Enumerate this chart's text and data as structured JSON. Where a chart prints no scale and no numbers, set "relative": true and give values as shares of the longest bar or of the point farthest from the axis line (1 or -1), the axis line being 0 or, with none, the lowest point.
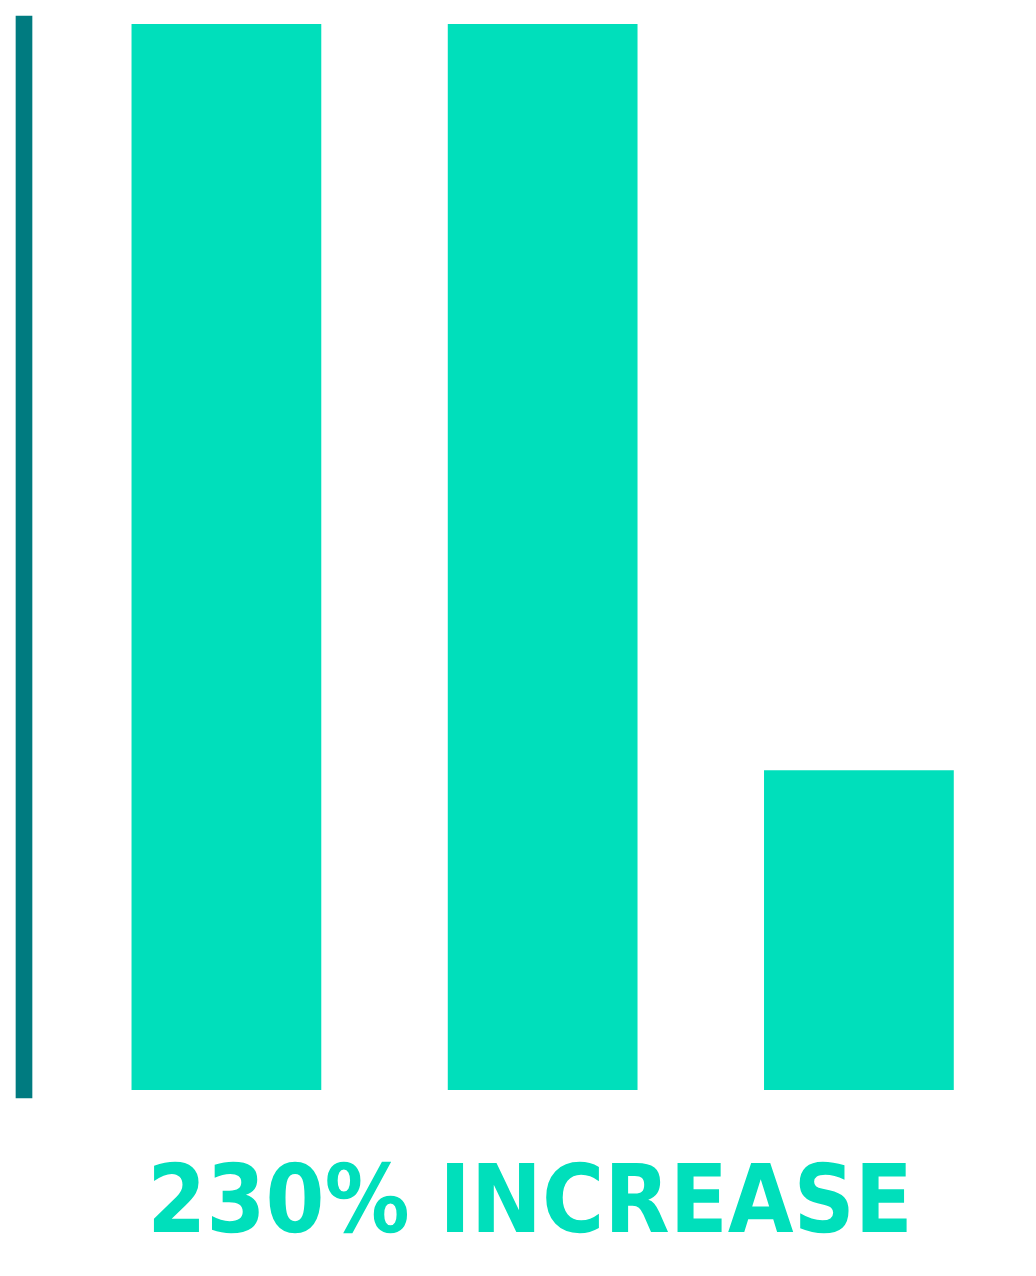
{
  "chart_data": {
    "type": "bar",
    "relative": true,
    "categories": [
      null,
      null,
      null
    ],
    "values": [
      1,
      1,
      0.3
    ],
    "color": "#00dfbb",
    "annotations": [
      "230% INCREASE"
    ]
  }
}
